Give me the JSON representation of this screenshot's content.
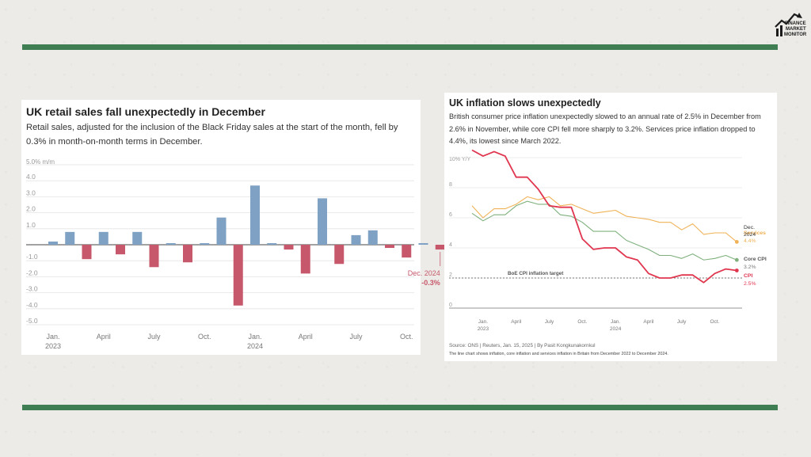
{
  "logo": {
    "icon": "finance-market-monitor-logo-icon",
    "text_lines": [
      "FINANCE",
      "MARKET",
      "MONITOR"
    ]
  },
  "colors": {
    "band": "#3f7d53",
    "bar_pos": "#7fa1c3",
    "bar_neg": "#c7586b",
    "cpi": "#e0364f",
    "core": "#7fb07d",
    "services": "#f0b257"
  },
  "chart_data": [
    {
      "type": "bar",
      "title": "UK retail sales fall unexpectedly in December",
      "subtitle": "Retail sales, adjusted for the inclusion of the Black Friday sales at the start of the month, fell by 0.3% in month-on-month terms in December.",
      "ylabel": "5.0% m/m",
      "ylim": [
        -5,
        5
      ],
      "yticks": [
        "4.0",
        "3.0",
        "2.0",
        "1.0",
        "-1.0",
        "-2.0",
        "-3.0",
        "-4.0",
        "-5.0"
      ],
      "xtick_labels": [
        {
          "label": "Jan.",
          "sub": "2023",
          "index": 0
        },
        {
          "label": "April",
          "sub": "",
          "index": 3
        },
        {
          "label": "July",
          "sub": "",
          "index": 6
        },
        {
          "label": "Oct.",
          "sub": "",
          "index": 9
        },
        {
          "label": "Jan.",
          "sub": "2024",
          "index": 12
        },
        {
          "label": "April",
          "sub": "",
          "index": 15
        },
        {
          "label": "July",
          "sub": "",
          "index": 18
        },
        {
          "label": "Oct.",
          "sub": "",
          "index": 21
        },
        {
          "label": "Jan.",
          "sub": "2025",
          "index": 24
        }
      ],
      "categories": [
        "Jan 2023",
        "Feb 2023",
        "Mar 2023",
        "Apr 2023",
        "May 2023",
        "Jun 2023",
        "Jul 2023",
        "Aug 2023",
        "Sep 2023",
        "Oct 2023",
        "Nov 2023",
        "Dec 2023",
        "Jan 2024",
        "Feb 2024",
        "Mar 2024",
        "Apr 2024",
        "May 2024",
        "Jun 2024",
        "Jul 2024",
        "Aug 2024",
        "Sep 2024",
        "Oct 2024",
        "Nov 2024",
        "Dec 2024"
      ],
      "values": [
        0.2,
        0.8,
        -0.9,
        0.8,
        -0.6,
        0.8,
        -1.4,
        0.1,
        -1.1,
        0.1,
        1.7,
        -3.8,
        3.7,
        0.1,
        -0.3,
        -1.8,
        2.9,
        -1.2,
        0.6,
        0.9,
        -0.2,
        -0.8,
        0.1,
        -0.3
      ],
      "annotation": {
        "label": "Dec. 2024",
        "value": "-0.3%"
      }
    },
    {
      "type": "line",
      "title": "UK inflation slows unexpectedly",
      "subtitle": "British consumer price inflation unexpectedly slowed to an annual rate of 2.5% in December from 2.6% in November, while core CPI fell more sharply to 3.2%. Services price inflation dropped to 4.4%, its lowest since March 2022.",
      "ylabel": "10% Y/Y",
      "ylim": [
        0,
        10
      ],
      "yticks": [
        "8",
        "6",
        "4",
        "2",
        "0"
      ],
      "xtick_labels": [
        {
          "label": "Jan.",
          "sub": "2023",
          "index": 1
        },
        {
          "label": "April",
          "sub": "",
          "index": 4
        },
        {
          "label": "July",
          "sub": "",
          "index": 7
        },
        {
          "label": "Oct.",
          "sub": "",
          "index": 10
        },
        {
          "label": "Jan.",
          "sub": "2024",
          "index": 13
        },
        {
          "label": "April",
          "sub": "",
          "index": 16
        },
        {
          "label": "July",
          "sub": "",
          "index": 19
        },
        {
          "label": "Oct.",
          "sub": "",
          "index": 22
        }
      ],
      "x": [
        "Dec 2022",
        "Jan 2023",
        "Feb 2023",
        "Mar 2023",
        "Apr 2023",
        "May 2023",
        "Jun 2023",
        "Jul 2023",
        "Aug 2023",
        "Sep 2023",
        "Oct 2023",
        "Nov 2023",
        "Dec 2023",
        "Jan 2024",
        "Feb 2024",
        "Mar 2024",
        "Apr 2024",
        "May 2024",
        "Jun 2024",
        "Jul 2024",
        "Aug 2024",
        "Sep 2024",
        "Oct 2024",
        "Nov 2024",
        "Dec 2024"
      ],
      "series": [
        {
          "name": "CPI",
          "end_label": "2.5%",
          "values": [
            10.5,
            10.1,
            10.4,
            10.1,
            8.7,
            8.7,
            7.9,
            6.8,
            6.7,
            6.7,
            4.6,
            3.9,
            4.0,
            4.0,
            3.4,
            3.2,
            2.3,
            2.0,
            2.0,
            2.2,
            2.2,
            1.7,
            2.3,
            2.6,
            2.5
          ]
        },
        {
          "name": "Core CPI",
          "end_label": "3.2%",
          "values": [
            6.3,
            5.8,
            6.2,
            6.2,
            6.8,
            7.1,
            6.9,
            6.9,
            6.2,
            6.1,
            5.7,
            5.1,
            5.1,
            5.1,
            4.5,
            4.2,
            3.9,
            3.5,
            3.5,
            3.3,
            3.6,
            3.2,
            3.3,
            3.5,
            3.2
          ]
        },
        {
          "name": "Services",
          "end_label": "4.4%",
          "values": [
            6.8,
            6.0,
            6.6,
            6.6,
            6.9,
            7.4,
            7.2,
            7.4,
            6.8,
            6.9,
            6.6,
            6.3,
            6.4,
            6.5,
            6.1,
            6.0,
            5.9,
            5.7,
            5.7,
            5.2,
            5.6,
            4.9,
            5.0,
            5.0,
            4.4
          ]
        }
      ],
      "end_date_label": [
        "Dec.",
        "2024"
      ],
      "target_line": {
        "value": 2,
        "label": "BoE CPI inflation target"
      },
      "source": "Source: ONS | Reuters, Jan. 15, 2025 | By Pasit Kongkunakornkul",
      "note": "The line chart shows inflation, core inflation and services inflation in Britain from December 2022 to December 2024."
    }
  ]
}
